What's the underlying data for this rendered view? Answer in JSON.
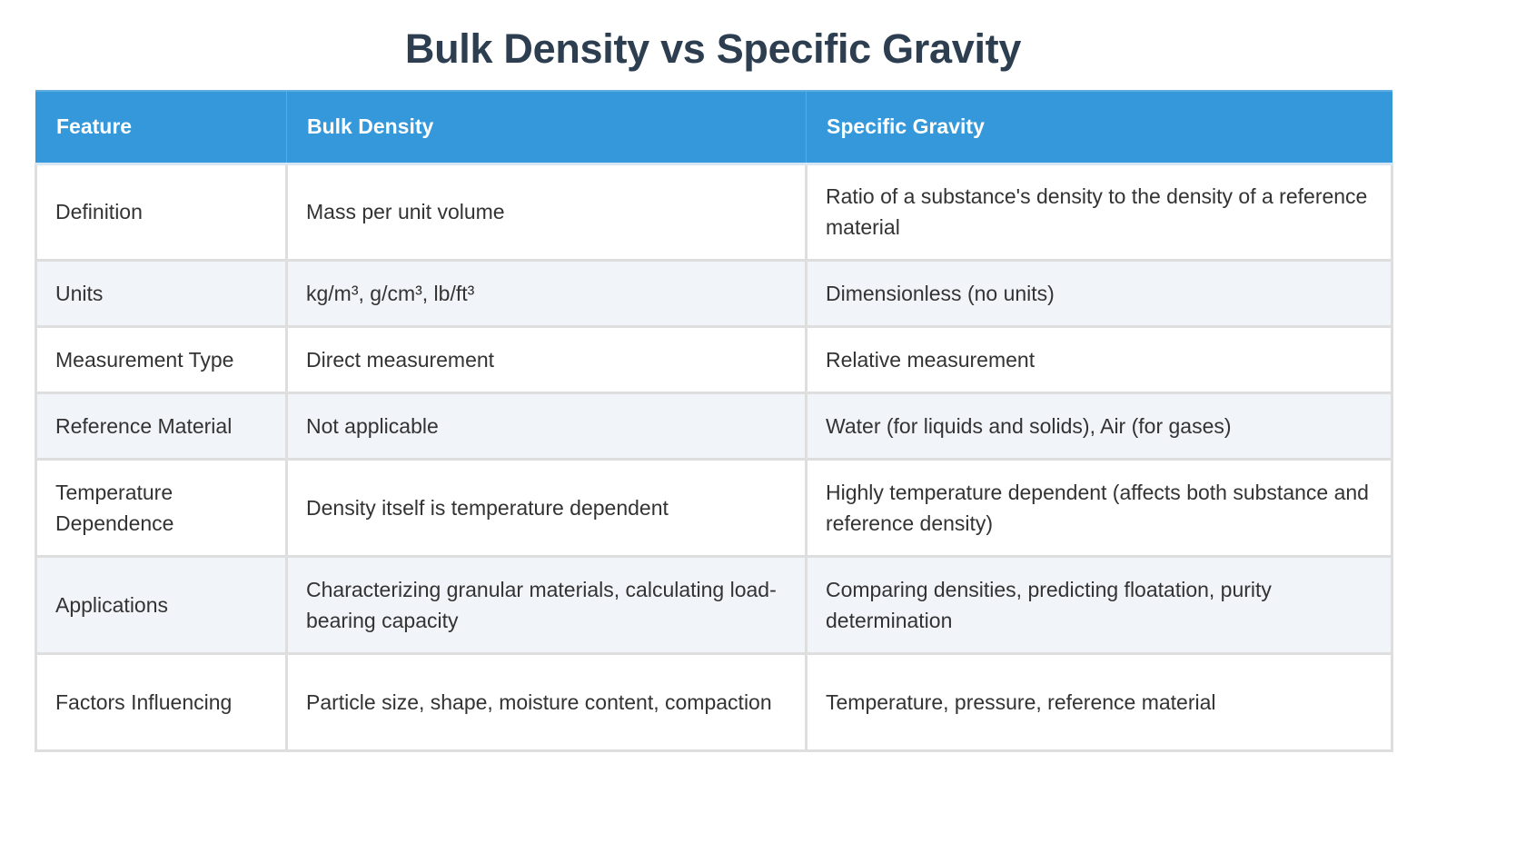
{
  "page": {
    "title": "Bulk Density vs Specific Gravity"
  },
  "colors": {
    "title": "#2c3e50",
    "header_bg": "#3498db",
    "header_text": "#ffffff",
    "row_alt_bg": "#f1f4f9",
    "row_bg": "#ffffff",
    "border": "#dedede",
    "cell_text": "#333333"
  },
  "table": {
    "headers": [
      "Feature",
      "Bulk Density",
      "Specific Gravity"
    ],
    "rows": [
      {
        "feature": "Definition",
        "bulk_density": "Mass per unit volume",
        "specific_gravity": "Ratio of a substance's density to the density of a reference material"
      },
      {
        "feature": "Units",
        "bulk_density": "kg/m³, g/cm³, lb/ft³",
        "specific_gravity": "Dimensionless (no units)"
      },
      {
        "feature": "Measurement Type",
        "bulk_density": "Direct measurement",
        "specific_gravity": "Relative measurement"
      },
      {
        "feature": "Reference Material",
        "bulk_density": "Not applicable",
        "specific_gravity": "Water (for liquids and solids), Air (for gases)"
      },
      {
        "feature": "Temperature Dependence",
        "bulk_density": "Density itself is temperature dependent",
        "specific_gravity": "Highly temperature dependent (affects both substance and reference density)"
      },
      {
        "feature": "Applications",
        "bulk_density": "Characterizing granular materials, calculating load-bearing capacity",
        "specific_gravity": "Comparing densities, predicting floatation, purity determination"
      },
      {
        "feature": "Factors Influencing",
        "bulk_density": "Particle size, shape, moisture content, compaction",
        "specific_gravity": "Temperature, pressure, reference material"
      }
    ]
  }
}
